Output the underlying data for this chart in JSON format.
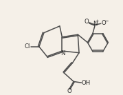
{
  "bg_color": "#f5f0e8",
  "line_color": "#4d4d4d",
  "line_width": 1.1,
  "text_color": "#2a2a2a",
  "font_size": 6.2,
  "figsize": [
    1.79,
    1.38
  ],
  "dpi": 100,
  "xlim": [
    0,
    10
  ],
  "ylim": [
    0,
    7.7
  ]
}
